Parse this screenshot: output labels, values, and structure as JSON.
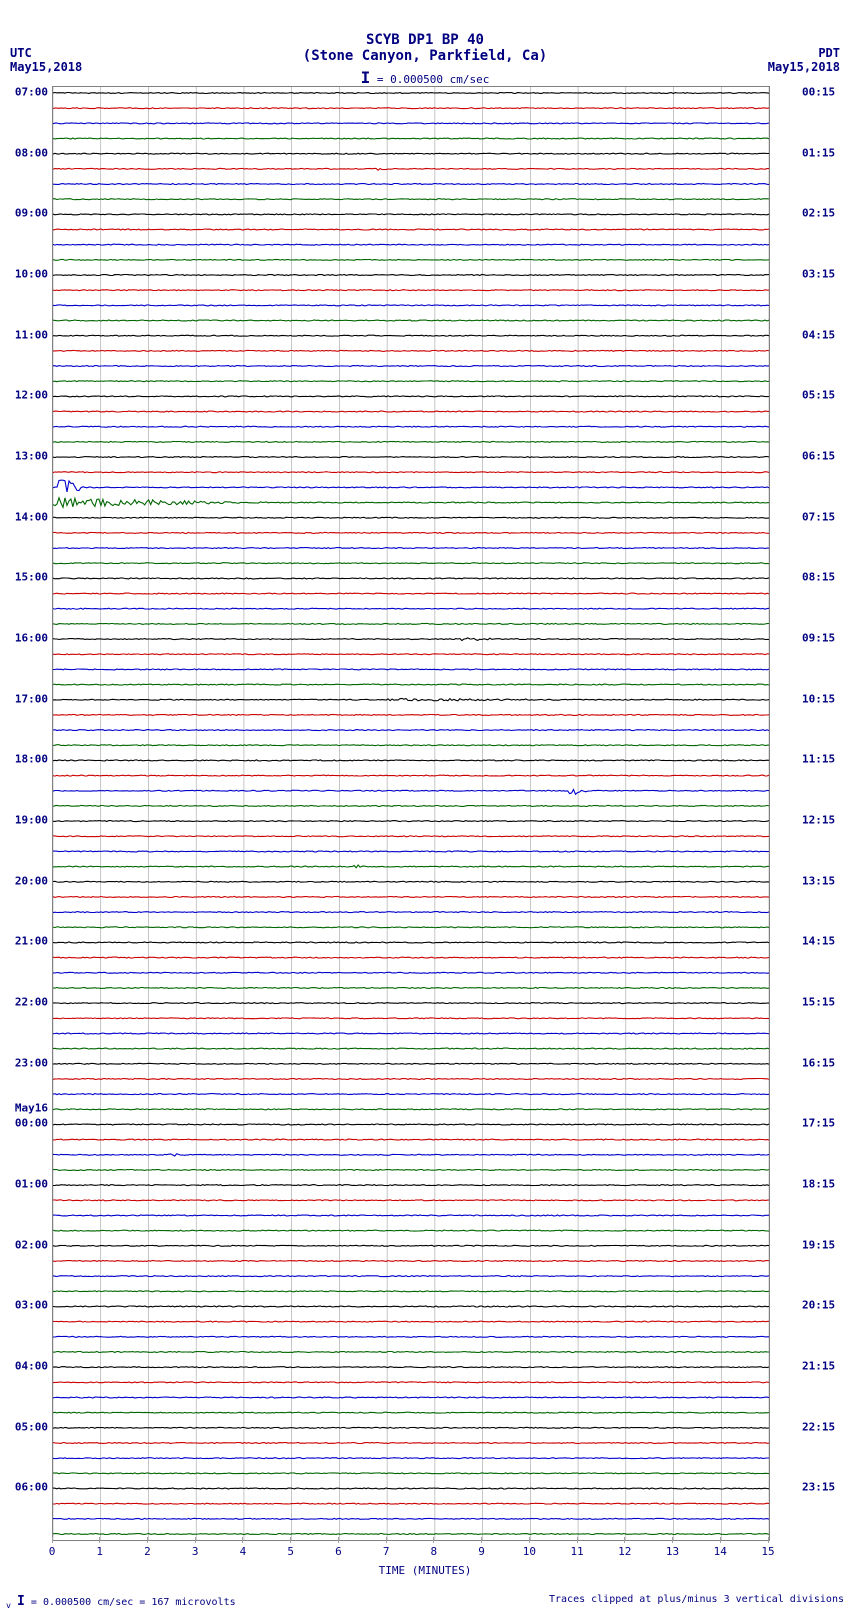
{
  "header": {
    "title": "SCYB DP1 BP 40",
    "subtitle": "(Stone Canyon, Parkfield, Ca)",
    "scale_label": "= 0.000500 cm/sec",
    "scale_bar_char": "I"
  },
  "timezones": {
    "left_tz": "UTC",
    "left_date": "May15,2018",
    "right_tz": "PDT",
    "right_date": "May15,2018"
  },
  "plot": {
    "type": "helicorder",
    "background_color": "#ffffff",
    "border_color": "#808080",
    "grid_color": "#a0a0a0",
    "trace_width": 1.1,
    "n_traces": 96,
    "colors_cycle": [
      "#000000",
      "#cc0000",
      "#0000cc",
      "#006600"
    ],
    "x_minutes": 15,
    "x_ticks": [
      0,
      1,
      2,
      3,
      4,
      5,
      6,
      7,
      8,
      9,
      10,
      11,
      12,
      13,
      14,
      15
    ],
    "x_title": "TIME (MINUTES)",
    "left_hour_labels": [
      {
        "text": "07:00",
        "trace": 0
      },
      {
        "text": "08:00",
        "trace": 4
      },
      {
        "text": "09:00",
        "trace": 8
      },
      {
        "text": "10:00",
        "trace": 12
      },
      {
        "text": "11:00",
        "trace": 16
      },
      {
        "text": "12:00",
        "trace": 20
      },
      {
        "text": "13:00",
        "trace": 24
      },
      {
        "text": "14:00",
        "trace": 28
      },
      {
        "text": "15:00",
        "trace": 32
      },
      {
        "text": "16:00",
        "trace": 36
      },
      {
        "text": "17:00",
        "trace": 40
      },
      {
        "text": "18:00",
        "trace": 44
      },
      {
        "text": "19:00",
        "trace": 48
      },
      {
        "text": "20:00",
        "trace": 52
      },
      {
        "text": "21:00",
        "trace": 56
      },
      {
        "text": "22:00",
        "trace": 60
      },
      {
        "text": "23:00",
        "trace": 64
      },
      {
        "text": "May16",
        "trace": 67
      },
      {
        "text": "00:00",
        "trace": 68
      },
      {
        "text": "01:00",
        "trace": 72
      },
      {
        "text": "02:00",
        "trace": 76
      },
      {
        "text": "03:00",
        "trace": 80
      },
      {
        "text": "04:00",
        "trace": 84
      },
      {
        "text": "05:00",
        "trace": 88
      },
      {
        "text": "06:00",
        "trace": 92
      }
    ],
    "right_hour_labels": [
      {
        "text": "00:15",
        "trace": 0
      },
      {
        "text": "01:15",
        "trace": 4
      },
      {
        "text": "02:15",
        "trace": 8
      },
      {
        "text": "03:15",
        "trace": 12
      },
      {
        "text": "04:15",
        "trace": 16
      },
      {
        "text": "05:15",
        "trace": 20
      },
      {
        "text": "06:15",
        "trace": 24
      },
      {
        "text": "07:15",
        "trace": 28
      },
      {
        "text": "08:15",
        "trace": 32
      },
      {
        "text": "09:15",
        "trace": 36
      },
      {
        "text": "10:15",
        "trace": 40
      },
      {
        "text": "11:15",
        "trace": 44
      },
      {
        "text": "12:15",
        "trace": 48
      },
      {
        "text": "13:15",
        "trace": 52
      },
      {
        "text": "14:15",
        "trace": 56
      },
      {
        "text": "15:15",
        "trace": 60
      },
      {
        "text": "16:15",
        "trace": 64
      },
      {
        "text": "17:15",
        "trace": 68
      },
      {
        "text": "18:15",
        "trace": 72
      },
      {
        "text": "19:15",
        "trace": 76
      },
      {
        "text": "20:15",
        "trace": 80
      },
      {
        "text": "21:15",
        "trace": 84
      },
      {
        "text": "22:15",
        "trace": 88
      },
      {
        "text": "23:15",
        "trace": 92
      }
    ],
    "noise_amplitude": 1.0,
    "events": [
      {
        "trace": 5,
        "start_min": 6.8,
        "duration_min": 0.3,
        "amp": 4
      },
      {
        "trace": 26,
        "start_min": 0.1,
        "duration_min": 0.6,
        "amp": 28
      },
      {
        "trace": 27,
        "start_min": 0.0,
        "duration_min": 4.5,
        "amp": 10
      },
      {
        "trace": 36,
        "start_min": 8.5,
        "duration_min": 1.2,
        "amp": 4
      },
      {
        "trace": 40,
        "start_min": 7.0,
        "duration_min": 6.0,
        "amp": 3
      },
      {
        "trace": 46,
        "start_min": 10.8,
        "duration_min": 0.4,
        "amp": 14
      },
      {
        "trace": 51,
        "start_min": 6.3,
        "duration_min": 0.4,
        "amp": 5
      },
      {
        "trace": 70,
        "start_min": 2.4,
        "duration_min": 0.3,
        "amp": 6
      }
    ]
  },
  "footer": {
    "left": "= 0.000500 cm/sec =    167 microvolts",
    "right": "Traces clipped at plus/minus 3 vertical divisions"
  },
  "styling": {
    "font_family": "monospace",
    "text_color": "#000080",
    "header_fontsize": 14,
    "label_fontsize": 11,
    "footer_fontsize": 10
  }
}
